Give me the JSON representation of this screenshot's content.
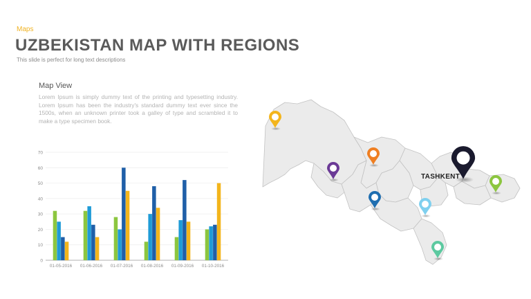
{
  "header": {
    "category": "Maps",
    "title": "UZBEKISTAN MAP WITH  REGIONS",
    "subtitle": "This slide is perfect for long text descriptions"
  },
  "map_view": {
    "title": "Map View",
    "text": "Lorem Ipsum is simply dummy text of the printing and typesetting industry. Lorem Ipsum has been the industry's standard dummy text ever since the 1500s, when an unknown printer took a galley of type and scrambled it to make a type specimen book."
  },
  "map": {
    "capital_label": "TASHKENT",
    "pins": [
      {
        "name": "pin-yellow-northwest",
        "color": "#f3b51c"
      },
      {
        "name": "pin-orange-north",
        "color": "#ef7f22"
      },
      {
        "name": "pin-purple-west",
        "color": "#6b3a96"
      },
      {
        "name": "pin-blue-center",
        "color": "#1f6eb0"
      },
      {
        "name": "pin-lightblue-east",
        "color": "#7fd0ef"
      },
      {
        "name": "pin-green-far-east",
        "color": "#8cc63f"
      },
      {
        "name": "pin-teal-south",
        "color": "#5cc9a0"
      },
      {
        "name": "pin-black-tashkent",
        "color": "#1a1a2e"
      }
    ]
  },
  "chart_data": {
    "type": "bar",
    "categories": [
      "01-05-2016",
      "01-06-2016",
      "01-07-2016",
      "01-08-2016",
      "01-09-2016",
      "01-10-2016"
    ],
    "ylim": [
      0,
      70
    ],
    "yticks": [
      0,
      10,
      20,
      30,
      40,
      50,
      60,
      70
    ],
    "series": [
      {
        "color": "#8cc63f",
        "values": [
          32,
          32,
          28,
          12,
          15,
          20
        ]
      },
      {
        "color": "#1f9bd7",
        "values": [
          25,
          35,
          20,
          30,
          26,
          22
        ]
      },
      {
        "color": "#1f5fa8",
        "values": [
          15,
          23,
          60,
          48,
          52,
          23
        ]
      },
      {
        "color": "#f3b51c",
        "values": [
          12,
          15,
          45,
          34,
          25,
          50
        ]
      }
    ],
    "title": "",
    "xlabel": "",
    "ylabel": ""
  }
}
